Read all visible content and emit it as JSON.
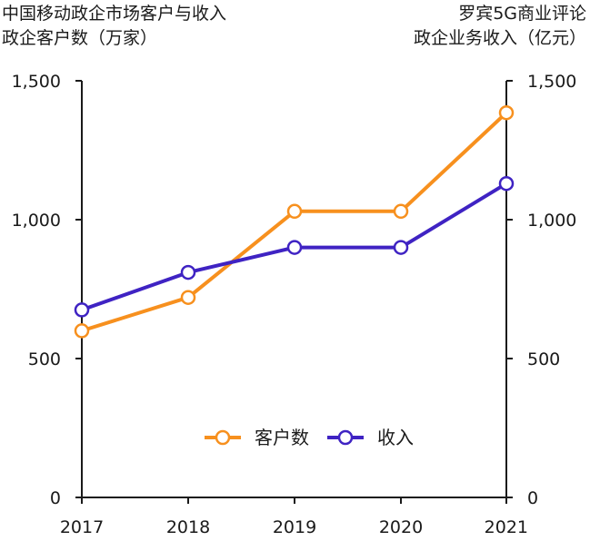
{
  "chart_data": {
    "type": "line",
    "title_left": [
      "中国移动政企市场客户与收入",
      "政企客户数（万家）"
    ],
    "title_right": [
      "罗宾5G商业评论",
      "政企业务收入（亿元）"
    ],
    "categories": [
      "2017",
      "2018",
      "2019",
      "2020",
      "2021"
    ],
    "y_left": {
      "ylim": [
        0,
        1500
      ],
      "ticks": [
        0,
        500,
        1000,
        1500
      ],
      "tick_labels": [
        "0",
        "500",
        "1,000",
        "1,500"
      ]
    },
    "y_right": {
      "ylim": [
        0,
        1500
      ],
      "ticks": [
        0,
        500,
        1000,
        1500
      ],
      "tick_labels": [
        "0",
        "500",
        "1,000",
        "1,500"
      ]
    },
    "series": [
      {
        "name": "客户数",
        "color": "#F7901E",
        "axis": "left",
        "values": [
          600,
          720,
          1030,
          1030,
          1385
        ]
      },
      {
        "name": "收入",
        "color": "#3F23C3",
        "axis": "right",
        "values": [
          675,
          810,
          900,
          900,
          1130
        ]
      }
    ],
    "legend": "center",
    "grid": false
  }
}
